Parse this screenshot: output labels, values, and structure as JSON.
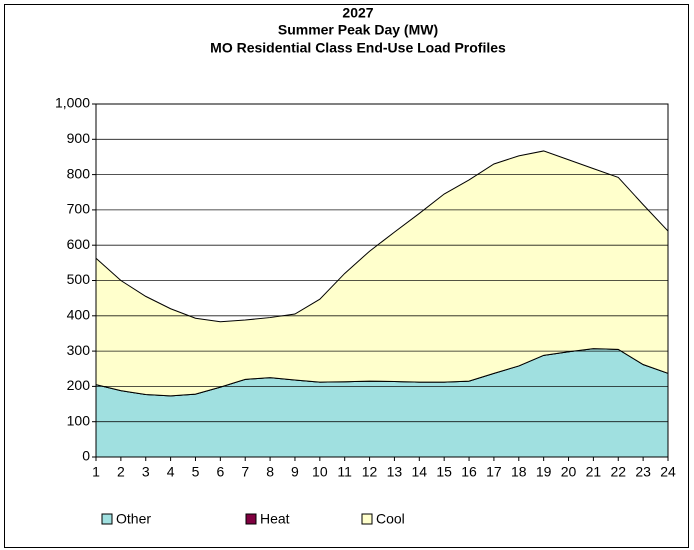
{
  "chart_data": {
    "type": "stacked_area",
    "title": [
      "2027",
      "Summer Peak Day (MW)",
      "MO Residential Class End-Use Load Profiles"
    ],
    "categories": [
      "1",
      "2",
      "3",
      "4",
      "5",
      "6",
      "7",
      "8",
      "9",
      "10",
      "11",
      "12",
      "13",
      "14",
      "15",
      "16",
      "17",
      "18",
      "19",
      "20",
      "21",
      "22",
      "23",
      "24"
    ],
    "series": [
      {
        "name": "Other",
        "color": "#a0e0e0",
        "values": [
          205,
          188,
          177,
          173,
          178,
          198,
          220,
          225,
          218,
          212,
          213,
          215,
          214,
          212,
          212,
          215,
          237,
          258,
          288,
          298,
          307,
          305,
          262,
          237
        ]
      },
      {
        "name": "Heat",
        "color": "#800040",
        "values": [
          0,
          0,
          0,
          0,
          0,
          0,
          0,
          0,
          0,
          0,
          0,
          0,
          0,
          0,
          0,
          0,
          0,
          0,
          0,
          0,
          0,
          0,
          0,
          0
        ]
      },
      {
        "name": "Cool",
        "color": "#ffffcc",
        "values": [
          358,
          312,
          278,
          247,
          215,
          185,
          168,
          170,
          187,
          235,
          307,
          368,
          423,
          478,
          533,
          570,
          593,
          595,
          579,
          544,
          510,
          487,
          453,
          403
        ]
      }
    ],
    "ylim": [
      0,
      1000
    ],
    "yticks": [
      0,
      100,
      200,
      300,
      400,
      500,
      600,
      700,
      800,
      900,
      {
        "value": 1000,
        "label": "1,000"
      }
    ],
    "grid": true,
    "legend": "bottom"
  }
}
